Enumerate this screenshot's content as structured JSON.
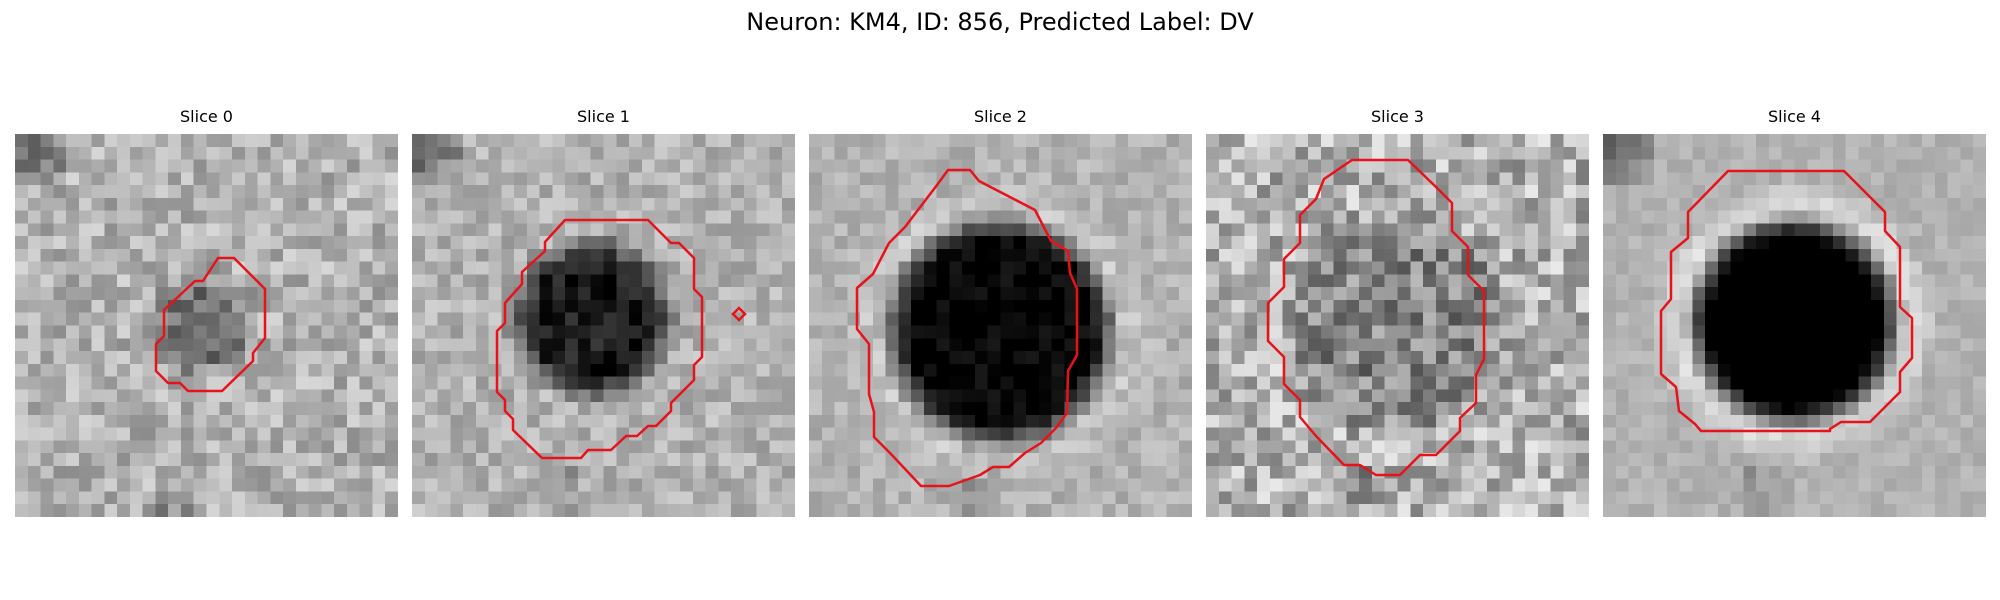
{
  "figure": {
    "title": "Neuron: KM4, ID: 856, Predicted Label: DV"
  },
  "panels": [
    {
      "title": "Slice 0"
    },
    {
      "title": "Slice 1"
    },
    {
      "title": "Slice 2"
    },
    {
      "title": "Slice 3"
    },
    {
      "title": "Slice 4"
    }
  ],
  "colors": {
    "contour": "#e8121b",
    "background": "#ffffff"
  }
}
